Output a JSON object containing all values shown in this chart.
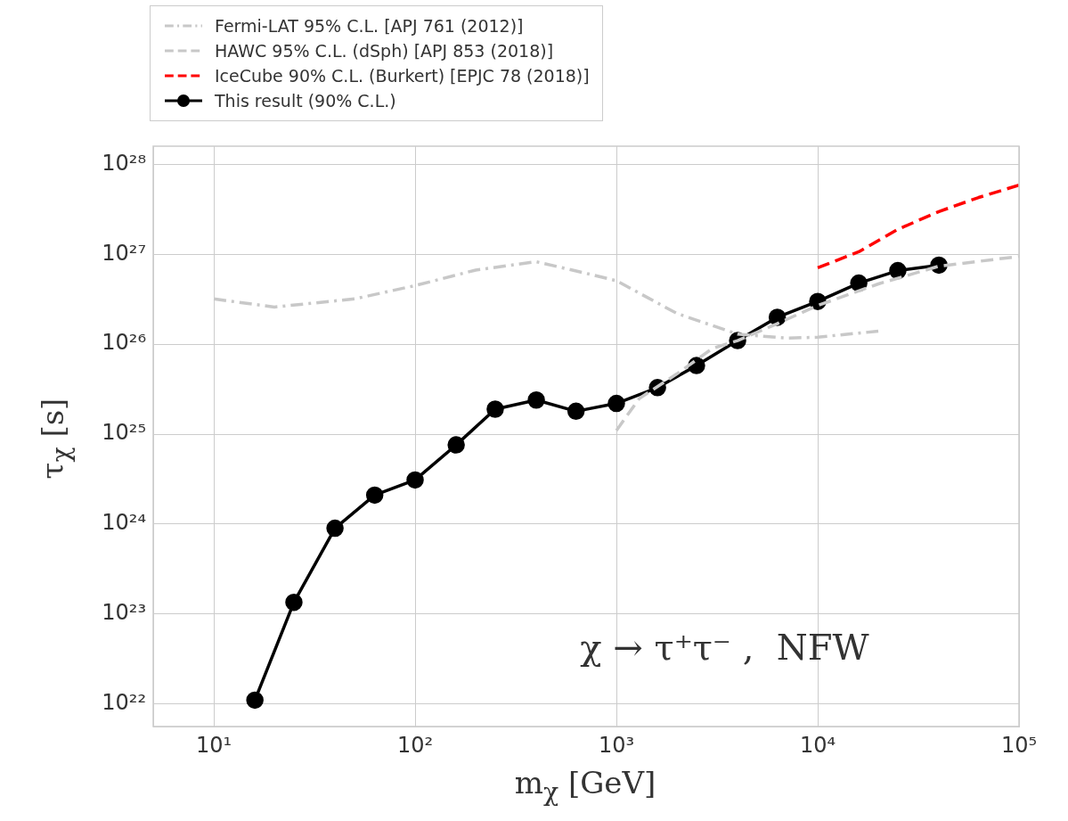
{
  "chart_data": {
    "type": "line",
    "xlabel": "m$_{χ}$  [GeV]",
    "ylabel": "τ$_{χ}$  [s]",
    "log": "xy",
    "grid": true,
    "legend": "top",
    "xlim": [
      5,
      100000
    ],
    "ylim": [
      5.6e+21,
      1.6e+28
    ],
    "xticks": [
      {
        "value": 10,
        "label": "10¹"
      },
      {
        "value": 100,
        "label": "10²"
      },
      {
        "value": 1000,
        "label": "10³"
      },
      {
        "value": 10000,
        "label": "10⁴"
      },
      {
        "value": 100000,
        "label": "10⁵"
      }
    ],
    "yticks": [
      {
        "value": 1e+22,
        "label": "10²²"
      },
      {
        "value": 1e+23,
        "label": "10²³"
      },
      {
        "value": 1e+24,
        "label": "10²⁴"
      },
      {
        "value": 1e+25,
        "label": "10²⁵"
      },
      {
        "value": 1e+26,
        "label": "10²⁶"
      },
      {
        "value": 1e+27,
        "label": "10²⁷"
      },
      {
        "value": 1e+28,
        "label": "10²⁸"
      }
    ],
    "annotations": [
      "χ → τ⁺τ⁻ ,  NFW"
    ],
    "series": [
      {
        "name": "Fermi-LAT 95% C.L. [APJ 761 (2012)]",
        "color": "#c8c8c8",
        "line_style": "dashdot",
        "marker": "none",
        "x": [
          10,
          20,
          50,
          100,
          200,
          400,
          700,
          1000,
          2000,
          4000,
          7000,
          10000,
          20000
        ],
        "values": [
          3.2e+26,
          2.6e+26,
          3.2e+26,
          4.5e+26,
          6.7e+26,
          8.3e+26,
          6.2e+26,
          5.1e+26,
          2.2e+26,
          1.3e+26,
          1.17e+26,
          1.2e+26,
          1.4e+26
        ]
      },
      {
        "name": "HAWC 95% C.L. (dSph) [APJ 853 (2018)]",
        "color": "#c8c8c8",
        "line_style": "dashed",
        "marker": "none",
        "x": [
          1000,
          1300,
          2000,
          3000,
          4000,
          6300,
          10000,
          20000,
          40000,
          100000
        ],
        "values": [
          1.1e+25,
          2.5e+25,
          4.7e+25,
          9e+25,
          1.1e+26,
          1.7e+26,
          2.7e+26,
          4.7e+26,
          7.4e+26,
          9.5e+26
        ]
      },
      {
        "name": "IceCube 90% C.L. (Burkert) [EPJC 78 (2018)]",
        "color": "#ff0000",
        "line_style": "dashed",
        "marker": "none",
        "x": [
          10000,
          16000,
          25000,
          40000,
          63000,
          100000
        ],
        "values": [
          7.1e+26,
          1.07e+27,
          1.9e+27,
          3e+27,
          4.3e+27,
          5.9e+27
        ]
      },
      {
        "name": "This result (90% C.L.)",
        "color": "#000000",
        "line_style": "solid",
        "marker": "circle",
        "x": [
          16,
          25,
          40,
          63,
          100,
          160,
          250,
          400,
          630,
          1000,
          1600,
          2500,
          4000,
          6300,
          10000,
          16000,
          25000,
          40000
        ],
        "values": [
          1.1e+22,
          1.35e+23,
          9e+23,
          2.1e+24,
          3.1e+24,
          7.6e+24,
          1.9e+25,
          2.4e+25,
          1.8e+25,
          2.2e+25,
          3.3e+25,
          5.8e+25,
          1.1e+26,
          2e+26,
          3e+26,
          4.8e+26,
          6.6e+26,
          7.6e+26
        ]
      }
    ]
  }
}
